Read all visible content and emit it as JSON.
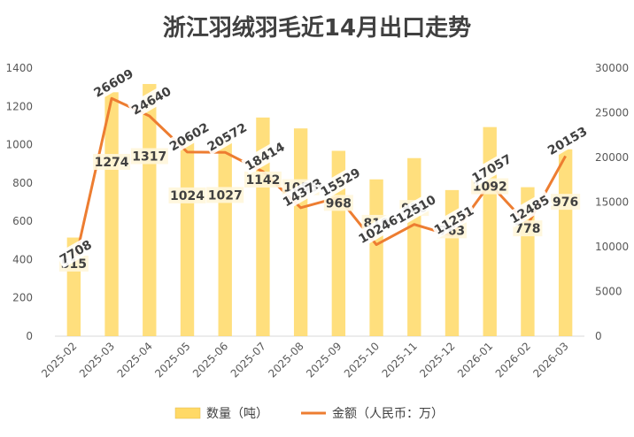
{
  "chart_data": {
    "type": "bar+line",
    "title": "浙江羽绒羽毛近14月出口走势",
    "categories": [
      "2025-02",
      "2025-03",
      "2025-04",
      "2025-05",
      "2025-06",
      "2025-07",
      "2025-08",
      "2025-09",
      "2025-10",
      "2025-11",
      "2025-12",
      "2026-01",
      "2026-02",
      "2026-03"
    ],
    "series": [
      {
        "name": "数量（吨）",
        "type": "bar",
        "axis": "left",
        "color": "#FFD966",
        "values": [
          515,
          1274,
          1317,
          1024,
          1027,
          1142,
          1085,
          968,
          819,
          930,
          763,
          1092,
          778,
          976
        ]
      },
      {
        "name": "金额（人民币：万）",
        "type": "line",
        "axis": "right",
        "color": "#ED7D31",
        "values": [
          7708,
          26609,
          24640,
          20602,
          20572,
          18414,
          14373,
          15529,
          10246,
          12510,
          11251,
          17057,
          12485,
          20153
        ]
      }
    ],
    "y_left": {
      "min": 0,
      "max": 1400,
      "step": 200,
      "ticks": [
        "0",
        "200",
        "400",
        "600",
        "800",
        "1000",
        "1200",
        "1400"
      ]
    },
    "y_right": {
      "min": 0,
      "max": 30000,
      "step": 5000,
      "ticks": [
        "0",
        "5000",
        "10000",
        "15000",
        "20000",
        "25000",
        "30000"
      ]
    },
    "legend": {
      "position": "bottom",
      "items": [
        "数量（吨）",
        "金额（人民币：万）"
      ]
    },
    "grid": false
  }
}
